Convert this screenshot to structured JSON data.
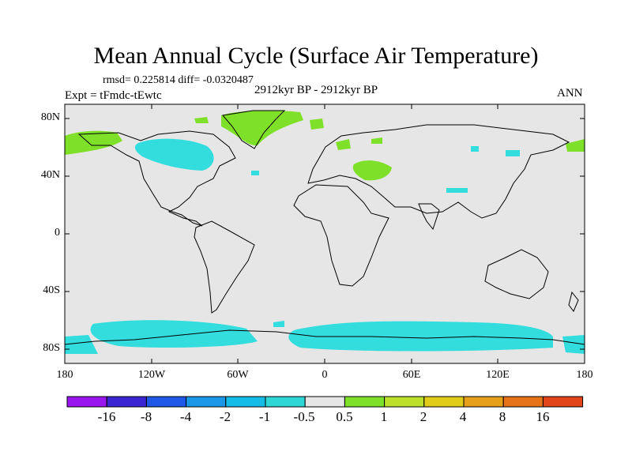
{
  "title": "Mean Annual Cycle (Surface Air Temperature)",
  "stats": {
    "rmsd_label": "rmsd=",
    "rmsd": "0.225814",
    "diff_label": "diff=",
    "diff": "-0.0320487"
  },
  "experiment": "Expt = tFmdc-tEwtc",
  "period": "2912kyr BP - 2912kyr BP",
  "season": "ANN",
  "colors": {
    "neutral": "#e6e6e6",
    "cool": "#33dddd",
    "warm": "#7fe02a",
    "coast": "#000000"
  },
  "map": {
    "lat_ticks": [
      "80N",
      "40N",
      "0",
      "40S",
      "80S"
    ],
    "lon_ticks": [
      "180",
      "120W",
      "60W",
      "0",
      "60E",
      "120E",
      "180"
    ]
  },
  "colorbar": {
    "colors": [
      "#9a16ee",
      "#3b25d2",
      "#1f57e6",
      "#1a97e6",
      "#15bde6",
      "#2fd6d6",
      "#e6e6e6",
      "#7fe02a",
      "#bde02a",
      "#e2cc1a",
      "#e6a01a",
      "#e6731a",
      "#e2451a"
    ],
    "labels": [
      "-16",
      "-8",
      "-4",
      "-2",
      "-1",
      "-0.5",
      "0.5",
      "1",
      "2",
      "4",
      "8",
      "16"
    ]
  }
}
